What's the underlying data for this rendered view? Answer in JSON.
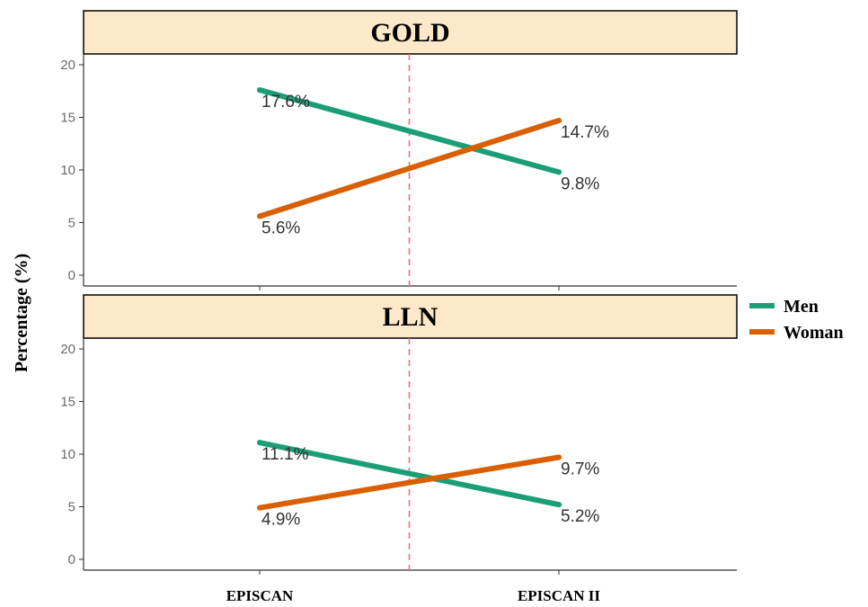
{
  "chart_data": {
    "type": "line",
    "ylabel": "Percentage (%)",
    "categories": [
      "EPISCAN",
      "EPISCAN II"
    ],
    "ylim": [
      0,
      20
    ],
    "yticks": [
      0,
      5,
      10,
      15,
      20
    ],
    "grid": false,
    "legend_position": "right",
    "reference_line": {
      "style": "dashed",
      "color": "#e8747c",
      "position": "between categories"
    },
    "series_meta": [
      {
        "name": "Men",
        "color": "#1b9e77"
      },
      {
        "name": "Woman",
        "color": "#d95f02"
      }
    ],
    "panels": [
      {
        "title": "GOLD",
        "series": [
          {
            "name": "Men",
            "values": [
              17.6,
              9.8
            ],
            "labels": [
              "17.6%",
              "9.8%"
            ]
          },
          {
            "name": "Woman",
            "values": [
              5.6,
              14.7
            ],
            "labels": [
              "5.6%",
              "14.7%"
            ]
          }
        ]
      },
      {
        "title": "LLN",
        "series": [
          {
            "name": "Men",
            "values": [
              11.1,
              5.2
            ],
            "labels": [
              "11.1%",
              "5.2%"
            ]
          },
          {
            "name": "Woman",
            "values": [
              4.9,
              9.7
            ],
            "labels": [
              "4.9%",
              "9.7%"
            ]
          }
        ]
      }
    ]
  },
  "colors": {
    "strip_fill": "#fde9c9",
    "axis": "#333333"
  }
}
